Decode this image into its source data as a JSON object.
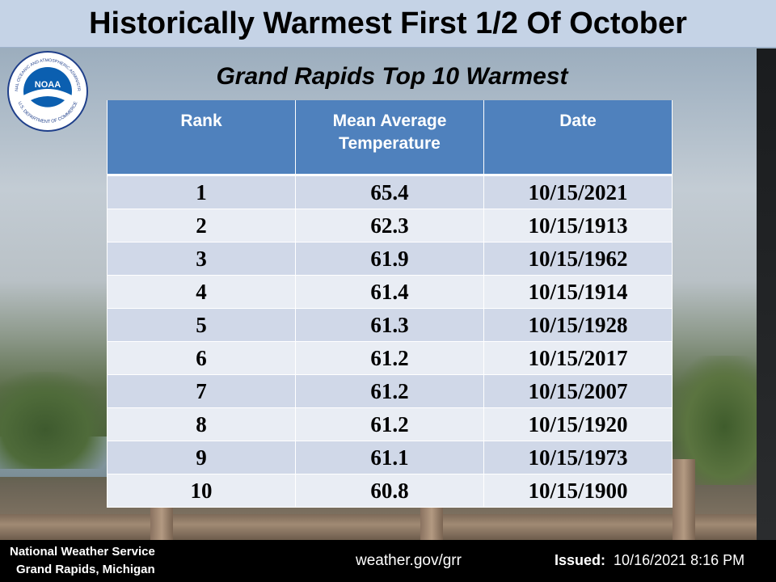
{
  "title": "Historically Warmest First 1/2 Of October",
  "subtitle": "Grand Rapids Top 10 Warmest",
  "logo": {
    "text": "NOARA",
    "ring_top": "NATIONAL OCEANIC AND ATMOSPHERIC ADMINISTRATION",
    "ring_bottom": "U.S. DEPARTMENT OF COMMERCE"
  },
  "table": {
    "headers": [
      "Rank",
      "Mean Average Temperature",
      "Date"
    ],
    "header_lines": {
      "mean_1": "Mean Average",
      "mean_2": "Temperature"
    },
    "rows": [
      [
        "1",
        "65.4",
        "10/15/2021"
      ],
      [
        "2",
        "62.3",
        "10/15/1913"
      ],
      [
        "3",
        "61.9",
        "10/15/1962"
      ],
      [
        "4",
        "61.4",
        "10/15/1914"
      ],
      [
        "5",
        "61.3",
        "10/15/1928"
      ],
      [
        "6",
        "61.2",
        "10/15/2017"
      ],
      [
        "7",
        "61.2",
        "10/15/2007"
      ],
      [
        "8",
        "61.2",
        "10/15/1920"
      ],
      [
        "9",
        "61.1",
        "10/15/1973"
      ],
      [
        "10",
        "60.8",
        "10/15/1900"
      ]
    ]
  },
  "footer": {
    "org_line1": "National Weather Service",
    "org_line2": "Grand Rapids, Michigan",
    "url": "weather.gov/grr",
    "issued_label": "Issued:",
    "issued_value": "10/16/2021 8:16 PM"
  },
  "colors": {
    "header_blue": "#4f81bd",
    "row_odd": "#d0d8e8",
    "row_even": "#e9edf4",
    "title_bar": "#c5d3e6"
  }
}
